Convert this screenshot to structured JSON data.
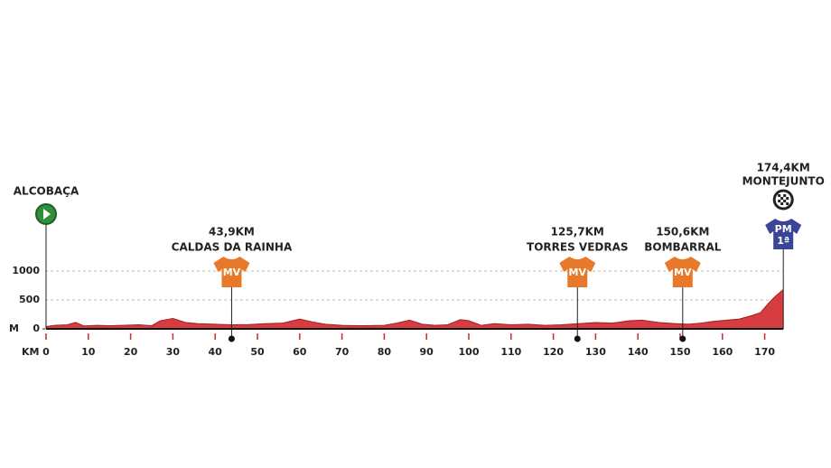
{
  "chart_data": {
    "type": "area",
    "x_label": "KM",
    "y_label": "M",
    "x": [
      0,
      2,
      5,
      7,
      9,
      12,
      15,
      18,
      22,
      25,
      27,
      30,
      33,
      36,
      40,
      44,
      48,
      52,
      56,
      60,
      63,
      66,
      70,
      75,
      80,
      83,
      86,
      89,
      92,
      95,
      98,
      100,
      103,
      106,
      110,
      114,
      118,
      122,
      126,
      130,
      134,
      138,
      141,
      145,
      149,
      152,
      155,
      158,
      161,
      164,
      167,
      169,
      171,
      172.5,
      174.4
    ],
    "values": [
      40,
      60,
      70,
      110,
      50,
      60,
      55,
      60,
      70,
      55,
      140,
      180,
      110,
      90,
      80,
      70,
      75,
      90,
      100,
      170,
      120,
      80,
      60,
      55,
      60,
      100,
      150,
      80,
      60,
      70,
      160,
      140,
      60,
      90,
      70,
      80,
      60,
      70,
      90,
      110,
      100,
      140,
      150,
      110,
      90,
      80,
      100,
      130,
      150,
      170,
      230,
      280,
      450,
      560,
      680
    ],
    "color": "#d3272b",
    "xlim": [
      0,
      174.4
    ],
    "ylim": [
      0,
      1000
    ],
    "xticks": [
      0,
      10,
      20,
      30,
      40,
      50,
      60,
      70,
      80,
      90,
      100,
      110,
      120,
      130,
      140,
      150,
      160,
      170
    ],
    "yticks": [
      {
        "value": 0,
        "label": "0"
      },
      500,
      1000
    ],
    "grid": true,
    "start": {
      "x": 0,
      "place": "ALCOBAÇA"
    },
    "markers": [
      {
        "x": 43.9,
        "label": "43,9KM",
        "place": "CALDAS DA RAINHA",
        "icon": "MV",
        "color": "#e8792b"
      },
      {
        "x": 125.7,
        "label": "125,7KM",
        "place": "TORRES VEDRAS",
        "icon": "MV",
        "color": "#e8792b"
      },
      {
        "x": 150.6,
        "label": "150,6KM",
        "place": "BOMBARRAL",
        "icon": "MV",
        "color": "#e8792b"
      }
    ],
    "finish": {
      "x": 174.4,
      "label": "174,4KM",
      "place": "MONTEJUNTO",
      "icon": "PM",
      "icon_sub": "1ª",
      "color": "#3a4597"
    }
  }
}
